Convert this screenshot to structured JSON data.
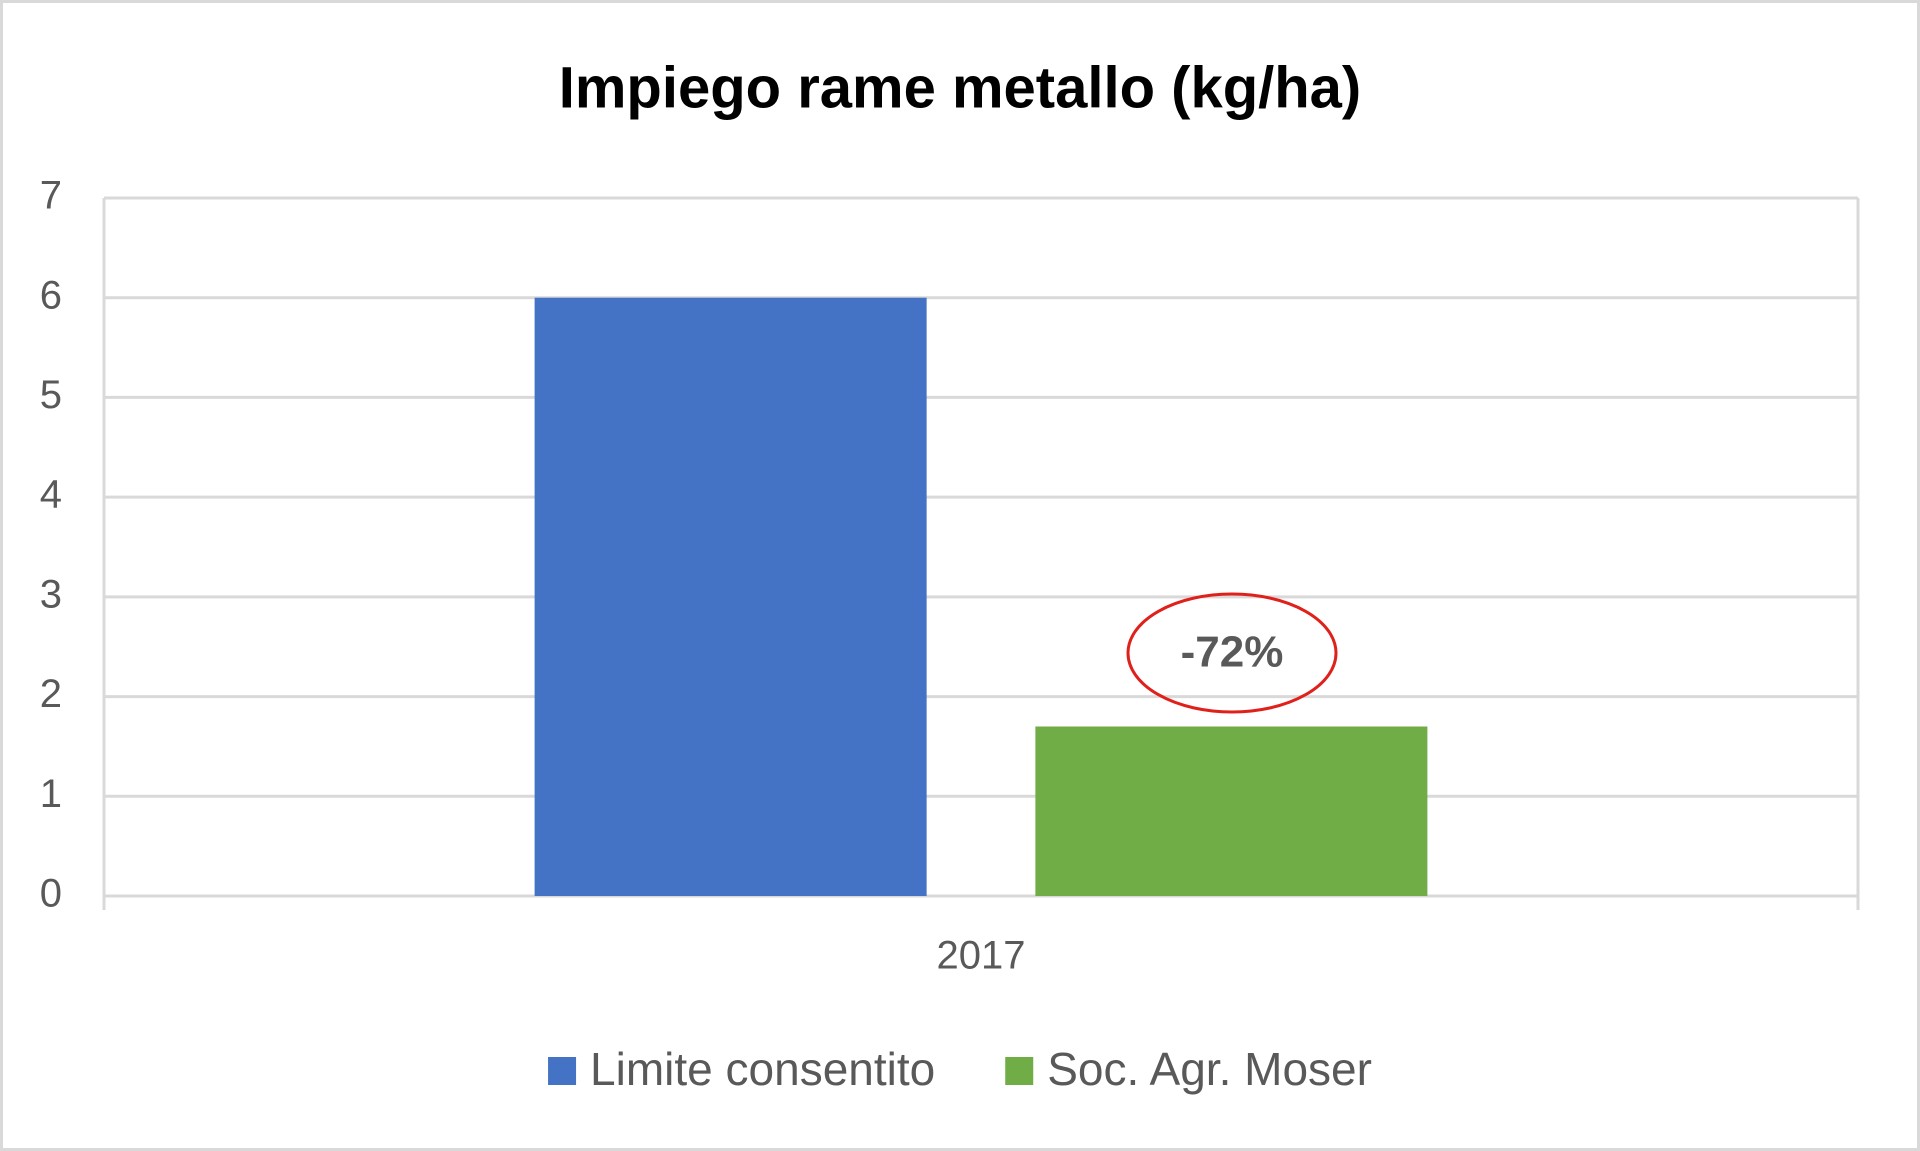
{
  "chart_data": {
    "type": "bar",
    "title": "Impiego rame metallo (kg/ha)",
    "categories": [
      "2017"
    ],
    "series": [
      {
        "name": "Limite consentito",
        "color": "#4472c4",
        "values": [
          6
        ]
      },
      {
        "name": "Soc. Agr. Moser",
        "color": "#70ad47",
        "values": [
          1.7
        ]
      }
    ],
    "annotation": "-72%",
    "ylim": [
      0,
      7
    ],
    "yticks": [
      0,
      1,
      2,
      3,
      4,
      5,
      6,
      7
    ],
    "grid": true,
    "legend": "bottom"
  }
}
